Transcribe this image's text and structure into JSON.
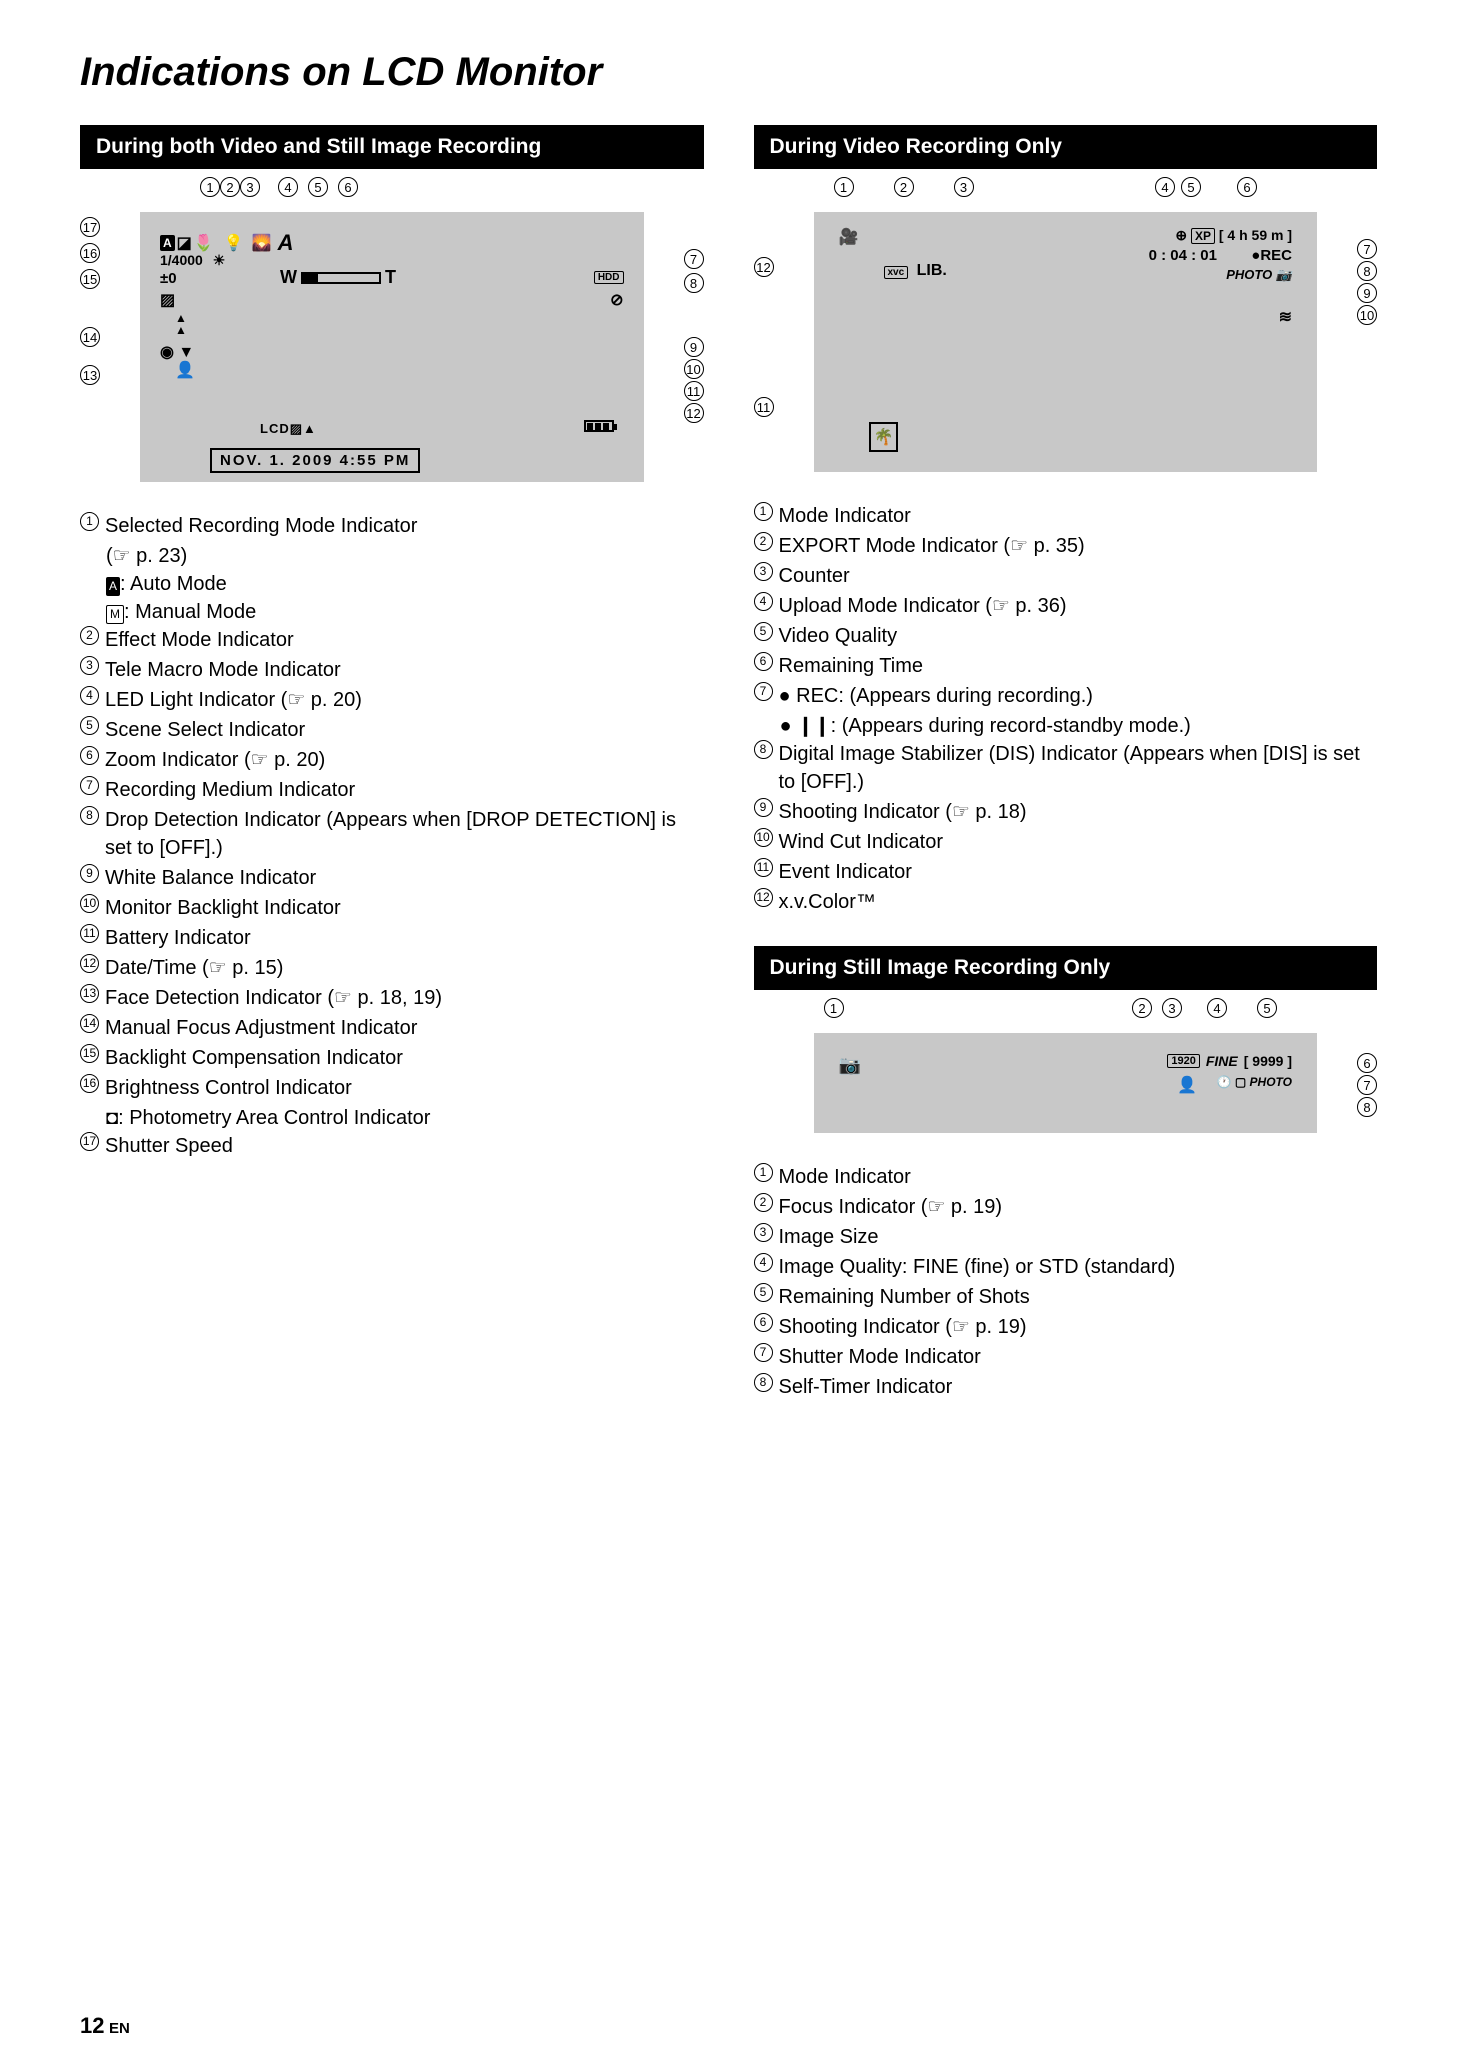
{
  "page_title": "Indications on LCD Monitor",
  "page_number": "12",
  "page_lang": "EN",
  "sections": {
    "both": {
      "title": "During both Video and Still Image Recording",
      "lcd": {
        "shutter": "1/4000",
        "exposure": "±0",
        "mode_letter": "A",
        "zoom_w": "W",
        "zoom_t": "T",
        "hdd": "HDD",
        "lcd_label": "LCD",
        "datetime": "NOV. 1. 2009   4:55 PM",
        "auto_icon": "A",
        "manual_icon": "M"
      },
      "items": [
        {
          "n": "1",
          "text": "Selected Recording Mode Indicator",
          "sub": [
            "(☞ p. 23)",
            "<A>: Auto Mode",
            "<M>: Manual Mode"
          ]
        },
        {
          "n": "2",
          "text": "Effect Mode Indicator"
        },
        {
          "n": "3",
          "text": "Tele Macro Mode Indicator"
        },
        {
          "n": "4",
          "text": "LED Light Indicator (☞ p. 20)"
        },
        {
          "n": "5",
          "text": "Scene Select Indicator"
        },
        {
          "n": "6",
          "text": "Zoom Indicator (☞ p. 20)"
        },
        {
          "n": "7",
          "text": "Recording Medium Indicator"
        },
        {
          "n": "8",
          "text": "Drop Detection Indicator (Appears when [DROP DETECTION] is set to [OFF].)"
        },
        {
          "n": "9",
          "text": "White Balance Indicator"
        },
        {
          "n": "10",
          "text": "Monitor Backlight Indicator"
        },
        {
          "n": "11",
          "text": "Battery Indicator"
        },
        {
          "n": "12",
          "text": "Date/Time (☞ p. 15)"
        },
        {
          "n": "13",
          "text": "Face Detection Indicator (☞ p. 18, 19)"
        },
        {
          "n": "14",
          "text": "Manual Focus Adjustment Indicator"
        },
        {
          "n": "15",
          "text": "Backlight Compensation Indicator"
        },
        {
          "n": "16",
          "text": "Brightness Control Indicator",
          "sub": [
            "◘: Photometry Area Control Indicator"
          ]
        },
        {
          "n": "17",
          "text": "Shutter Speed"
        }
      ]
    },
    "video": {
      "title": "During Video Recording Only",
      "lcd": {
        "xp": "XP",
        "remain": "[ 4 h 59 m ]",
        "counter": "0 : 04 : 01",
        "rec": "●REC",
        "photo": "PHOTO",
        "lib": "LIB.",
        "xvc": "xvc"
      },
      "items": [
        {
          "n": "1",
          "text": "Mode Indicator"
        },
        {
          "n": "2",
          "text": "EXPORT Mode Indicator (☞ p. 35)"
        },
        {
          "n": "3",
          "text": "Counter"
        },
        {
          "n": "4",
          "text": "Upload Mode Indicator (☞ p. 36)"
        },
        {
          "n": "5",
          "text": "Video Quality"
        },
        {
          "n": "6",
          "text": "Remaining Time"
        },
        {
          "n": "7",
          "text": "● REC: (Appears during recording.)",
          "sub": [
            "● ❙❙: (Appears during record-standby mode.)"
          ]
        },
        {
          "n": "8",
          "text": "Digital Image Stabilizer (DIS) Indicator (Appears when [DIS] is set to [OFF].)"
        },
        {
          "n": "9",
          "text": "Shooting Indicator (☞ p. 18)"
        },
        {
          "n": "10",
          "text": "Wind Cut Indicator"
        },
        {
          "n": "11",
          "text": "Event Indicator"
        },
        {
          "n": "12",
          "text": "x.v.Color™"
        }
      ]
    },
    "still": {
      "title": "During Still Image Recording Only",
      "lcd": {
        "size": "1920",
        "quality": "FINE",
        "shots": "[ 9999 ]",
        "photo": "PHOTO"
      },
      "items": [
        {
          "n": "1",
          "text": "Mode Indicator"
        },
        {
          "n": "2",
          "text": "Focus Indicator (☞ p. 19)"
        },
        {
          "n": "3",
          "text": "Image Size"
        },
        {
          "n": "4",
          "text": "Image Quality: FINE (fine) or STD (standard)"
        },
        {
          "n": "5",
          "text": "Remaining Number of Shots"
        },
        {
          "n": "6",
          "text": "Shooting Indicator (☞ p. 19)"
        },
        {
          "n": "7",
          "text": "Shutter Mode Indicator"
        },
        {
          "n": "8",
          "text": "Self-Timer Indicator"
        }
      ]
    }
  }
}
